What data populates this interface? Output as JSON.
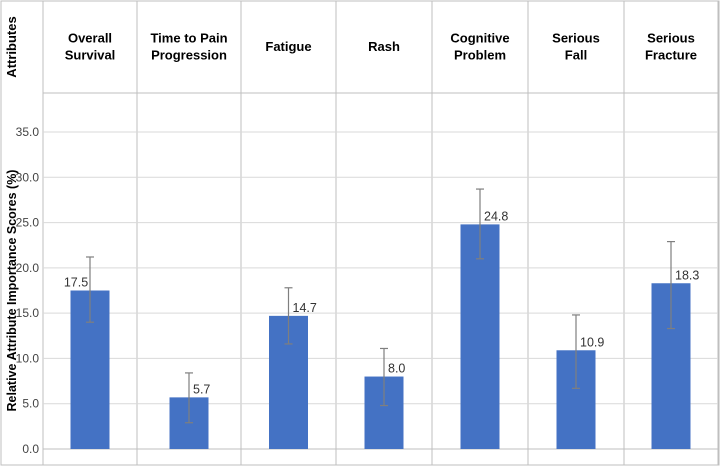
{
  "chart_data": {
    "type": "bar",
    "header_label": "Attributes",
    "categories": [
      [
        "Overall",
        "Survival"
      ],
      [
        "Time to Pain",
        "Progression"
      ],
      [
        "Fatigue"
      ],
      [
        "Rash"
      ],
      [
        "Cognitive",
        "Problem"
      ],
      [
        "Serious",
        "Fall"
      ],
      [
        "Serious",
        "Fracture"
      ]
    ],
    "values": [
      17.5,
      5.7,
      14.7,
      8.0,
      24.8,
      10.9,
      18.3
    ],
    "value_labels": [
      "17.5",
      "5.7",
      "14.7",
      "8.0",
      "24.8",
      "10.9",
      "18.3"
    ],
    "error_low": [
      14.0,
      2.9,
      11.6,
      4.8,
      21.0,
      6.7,
      13.3
    ],
    "error_high": [
      21.2,
      8.4,
      17.8,
      11.1,
      28.7,
      14.8,
      22.9
    ],
    "ylabel": "Relative Attribute Importance Scores (%)",
    "ylim": [
      0,
      35
    ],
    "yticks": [
      "0.0",
      "5.0",
      "10.0",
      "15.0",
      "20.0",
      "25.0",
      "30.0",
      "35.0"
    ],
    "grid": true,
    "bar_color": "#4472C4",
    "error_bar_color": "#7f7f7f"
  }
}
